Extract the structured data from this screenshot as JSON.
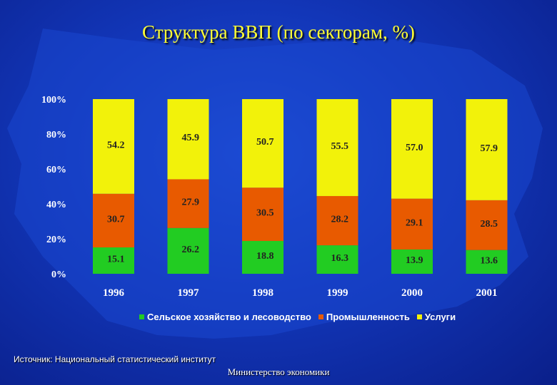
{
  "title": "Структура ВВП (по секторам, %)",
  "source": "Источник: Национальный статистический институт",
  "footer": "Министерство экономики",
  "chart_data": {
    "type": "bar",
    "stacked": true,
    "categories": [
      "1996",
      "1997",
      "1998",
      "1999",
      "2000",
      "2001"
    ],
    "series": [
      {
        "name": "Сельское хозяйство и лесоводство",
        "color": "#22cc22",
        "values": [
          15.1,
          26.2,
          18.8,
          16.3,
          13.9,
          13.6
        ]
      },
      {
        "name": "Промышленность",
        "color": "#e85a00",
        "values": [
          30.7,
          27.9,
          30.5,
          28.2,
          29.1,
          28.5
        ]
      },
      {
        "name": "Услуги",
        "color": "#f2f20a",
        "values": [
          54.2,
          45.9,
          50.7,
          55.5,
          57.0,
          57.9
        ]
      }
    ],
    "value_labels": [
      [
        "15.1",
        "26.2",
        "18.8",
        "16.3",
        "13.9",
        "13.6"
      ],
      [
        "30.7",
        "27.9",
        "30.5",
        "28.2",
        "29.1",
        "28.5"
      ],
      [
        "54.2",
        "45.9",
        "50.7",
        "55.5",
        "57.0",
        "57.9"
      ]
    ],
    "yticks": [
      "0%",
      "20%",
      "40%",
      "60%",
      "80%",
      "100%"
    ],
    "ylim": [
      0,
      100
    ],
    "legend_position": "bottom",
    "grid": false
  }
}
